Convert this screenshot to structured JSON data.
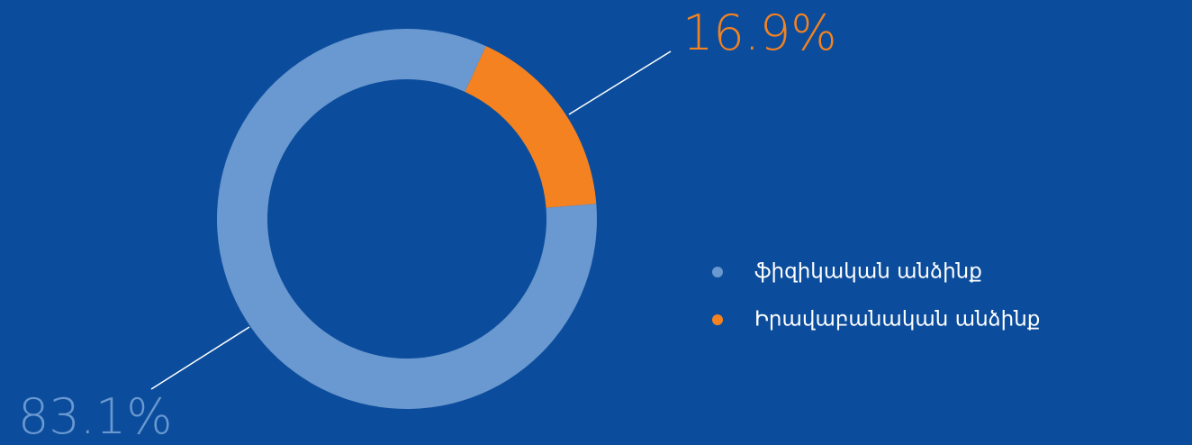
{
  "chart_data": {
    "type": "pie",
    "categories": [
      "ֆիզիկական անձինք",
      "Իրավաբանական անձինք"
    ],
    "values": [
      83.1,
      16.9
    ],
    "value_labels": [
      "83.1%",
      "16.9%"
    ],
    "colors": [
      "#6a98d0",
      "#f58220"
    ],
    "legend": "right"
  }
}
